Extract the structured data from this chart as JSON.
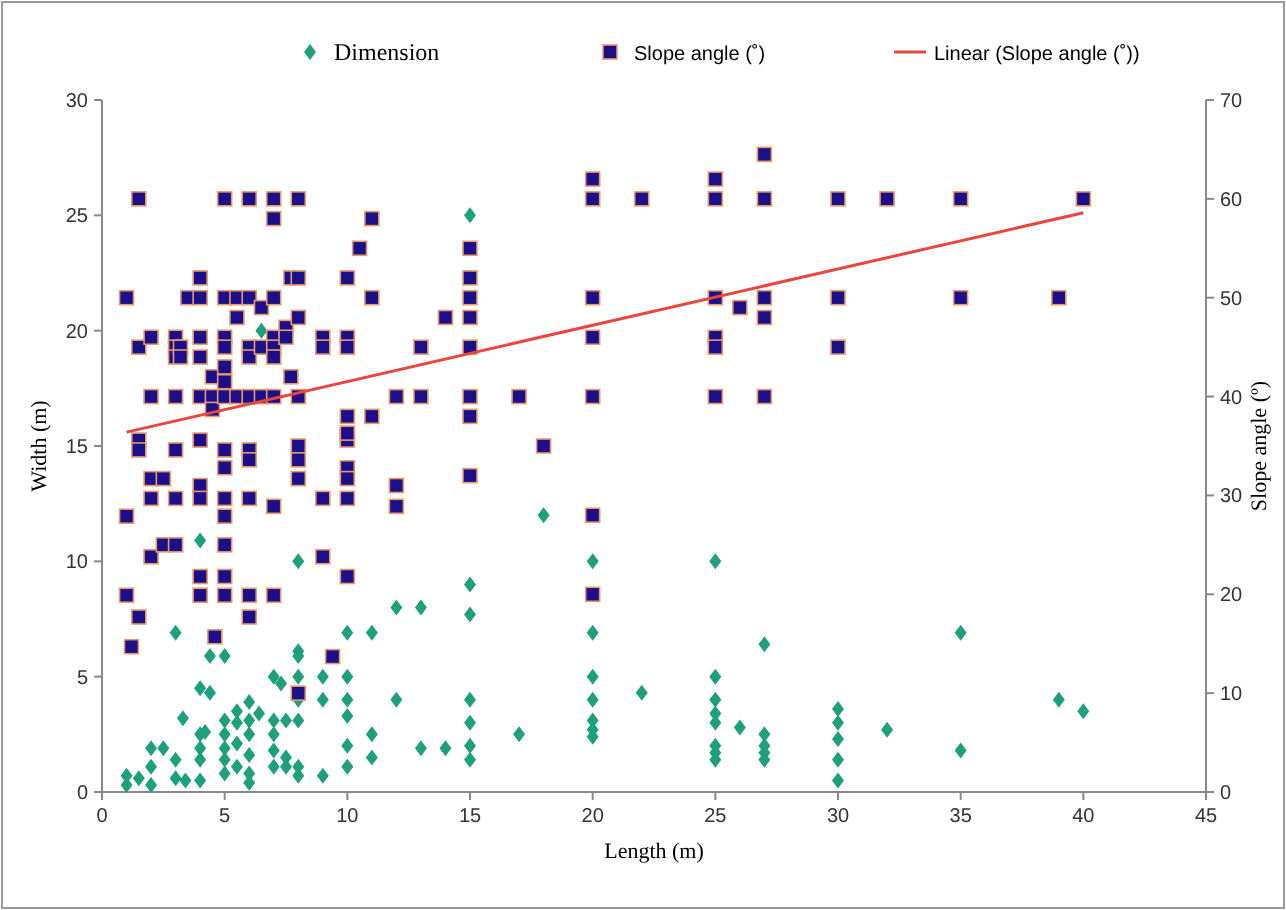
{
  "chart_data": {
    "type": "scatter",
    "xlabel": "Length (m)",
    "ylabel": "Width (m)",
    "y2label": "Slope  angle (º)",
    "xlim": [
      0,
      45
    ],
    "xticks": [
      0,
      5,
      10,
      15,
      20,
      25,
      30,
      35,
      40,
      45
    ],
    "ylim": [
      0,
      30
    ],
    "yticks": [
      0,
      5,
      10,
      15,
      20,
      25,
      30
    ],
    "y2lim": [
      0,
      70
    ],
    "y2ticks": [
      0,
      10,
      20,
      30,
      40,
      50,
      60,
      70
    ],
    "grid": false,
    "legend": "top",
    "series": [
      {
        "name": "Dimension",
        "marker": "diamond",
        "color": "#1fa07c",
        "x": [
          15,
          15,
          15,
          15,
          15,
          15,
          15,
          17,
          18,
          20,
          20,
          20,
          20,
          20,
          20,
          20,
          22,
          25,
          25,
          25,
          25,
          25,
          25,
          25,
          25,
          26,
          27,
          27,
          27,
          27,
          27,
          30,
          30,
          30,
          30,
          30,
          32,
          35,
          35,
          39,
          40,
          4,
          8,
          12,
          13,
          3,
          10,
          11,
          4.4,
          5,
          8,
          8,
          4,
          4.4,
          7,
          7.3,
          8,
          8,
          9,
          9,
          10,
          10,
          10,
          10,
          10,
          12,
          11,
          11,
          13,
          14,
          3.3,
          5.5,
          6.4,
          1,
          1,
          1.5,
          2,
          2,
          2,
          2.5,
          3,
          3,
          3.4,
          4,
          4,
          4,
          4,
          4.2,
          5,
          5,
          5,
          5,
          5,
          5.5,
          5.5,
          5.5,
          6,
          6,
          6,
          6,
          6,
          7,
          7,
          7,
          7,
          7.5,
          7.5,
          7.5,
          8,
          8,
          8,
          9,
          6,
          6.5
        ],
        "values": [
          25,
          9,
          7.7,
          4,
          3,
          2,
          1.4,
          2.5,
          12,
          10,
          6.9,
          5,
          4,
          3.1,
          2.7,
          2.4,
          4.3,
          10,
          5,
          4,
          3.4,
          3,
          2,
          1.7,
          1.4,
          2.8,
          6.4,
          2.5,
          2,
          1.7,
          1.4,
          3.6,
          3,
          2.3,
          1.4,
          0.5,
          2.7,
          6.9,
          1.8,
          4,
          3.5,
          10.9,
          10,
          8,
          8,
          6.9,
          6.9,
          6.9,
          5.9,
          5.9,
          6.1,
          5.9,
          4.5,
          4.3,
          5,
          4.7,
          5,
          4,
          5,
          4,
          5,
          4,
          3.3,
          2,
          1.1,
          4,
          2.5,
          1.5,
          1.9,
          1.9,
          3.2,
          3.5,
          3.4,
          0.7,
          0.3,
          0.6,
          1.9,
          1.1,
          0.3,
          1.9,
          1.4,
          0.6,
          0.5,
          2.5,
          1.9,
          1.4,
          0.5,
          2.6,
          3.1,
          2.5,
          1.9,
          1.4,
          0.8,
          3,
          2.1,
          1.1,
          3.1,
          2.5,
          1.6,
          0.8,
          0.4,
          3.1,
          2.5,
          1.8,
          1.1,
          3.1,
          1.5,
          1.1,
          3.1,
          1.1,
          0.7,
          0.7,
          3.9,
          20
        ]
      },
      {
        "name": "Slope angle (˚)",
        "marker": "square",
        "axis": "y2",
        "color": "#1c0f8a",
        "x": [
          15,
          15,
          15,
          15,
          15,
          15,
          15,
          15,
          17,
          18,
          20,
          20,
          20,
          20,
          20,
          20,
          20,
          22,
          25,
          25,
          25,
          25,
          25,
          25,
          26,
          27,
          27,
          27,
          27,
          27,
          30,
          30,
          30,
          32,
          35,
          35,
          39,
          40,
          1,
          1.5,
          1.5,
          2,
          2,
          3,
          3,
          3,
          3,
          3.2,
          3.2,
          3.5,
          4,
          4,
          4,
          4,
          4,
          4.5,
          4.5,
          4.5,
          5,
          5,
          5,
          5,
          5,
          5,
          5,
          5.5,
          5.5,
          5.5,
          6,
          6,
          6,
          6,
          6,
          6.5,
          6.5,
          6.5,
          7,
          7,
          7,
          7,
          7,
          7,
          7,
          7.5,
          7.5,
          7.7,
          7.7,
          8,
          8,
          8,
          8,
          9,
          9,
          10,
          10,
          10,
          10,
          10,
          10.5,
          11,
          11,
          11,
          12,
          13,
          13,
          14,
          1,
          1,
          1.5,
          1.5,
          1.5,
          1.2,
          2,
          2,
          2,
          2.5,
          2.5,
          3,
          3,
          3,
          4,
          4,
          4,
          4,
          4,
          4.6,
          5,
          5,
          5,
          5,
          5,
          5,
          5,
          6,
          6,
          6,
          6,
          6,
          7,
          7,
          8,
          8,
          8,
          8,
          9,
          9,
          9.4,
          10,
          10,
          10,
          10,
          10,
          10,
          12,
          12
        ],
        "values": [
          55,
          52,
          50,
          48,
          45,
          40,
          38,
          32,
          40,
          35,
          62,
          60,
          50,
          46,
          40,
          28,
          20,
          60,
          62,
          60,
          50,
          46,
          45,
          40,
          49,
          64.5,
          60,
          50,
          48,
          40,
          60,
          50,
          45,
          60,
          60,
          50,
          50,
          60,
          50,
          60,
          45,
          46,
          40,
          46,
          45,
          44,
          40,
          45,
          44,
          50,
          50,
          52,
          46,
          44,
          40,
          42,
          40,
          38.7,
          60,
          50,
          46,
          45,
          43,
          41.5,
          40,
          50,
          48,
          40,
          60,
          50,
          45,
          44,
          40,
          49,
          45,
          40,
          60,
          58,
          50,
          46,
          45,
          44,
          40,
          47,
          46,
          52,
          42,
          60,
          52,
          48,
          40,
          46,
          45,
          52,
          46,
          45,
          38,
          36,
          55,
          58,
          50,
          38,
          40,
          45,
          40,
          48,
          27.9,
          19.9,
          35.6,
          34.6,
          17.7,
          14.7,
          31.7,
          29.7,
          23.8,
          31.7,
          25,
          34.6,
          29.7,
          25,
          35.6,
          31,
          29.7,
          21.8,
          19.9,
          15.7,
          34.6,
          32.8,
          29.7,
          27.9,
          25,
          21.8,
          19.9,
          34.6,
          33.6,
          29.7,
          19.9,
          17.7,
          28.9,
          19.9,
          35,
          33.6,
          31.7,
          10,
          29.7,
          23.8,
          13.7,
          35.6,
          32.8,
          31.7,
          29.7,
          21.8,
          36.3,
          31,
          28.9
        ]
      },
      {
        "name": "Linear (Slope angle (˚))",
        "type": "line",
        "axis": "y2",
        "marker": "none",
        "line_style": "solid",
        "color": "#e8463e",
        "x": [
          1,
          40
        ],
        "values": [
          36.4,
          58.6
        ]
      }
    ]
  }
}
